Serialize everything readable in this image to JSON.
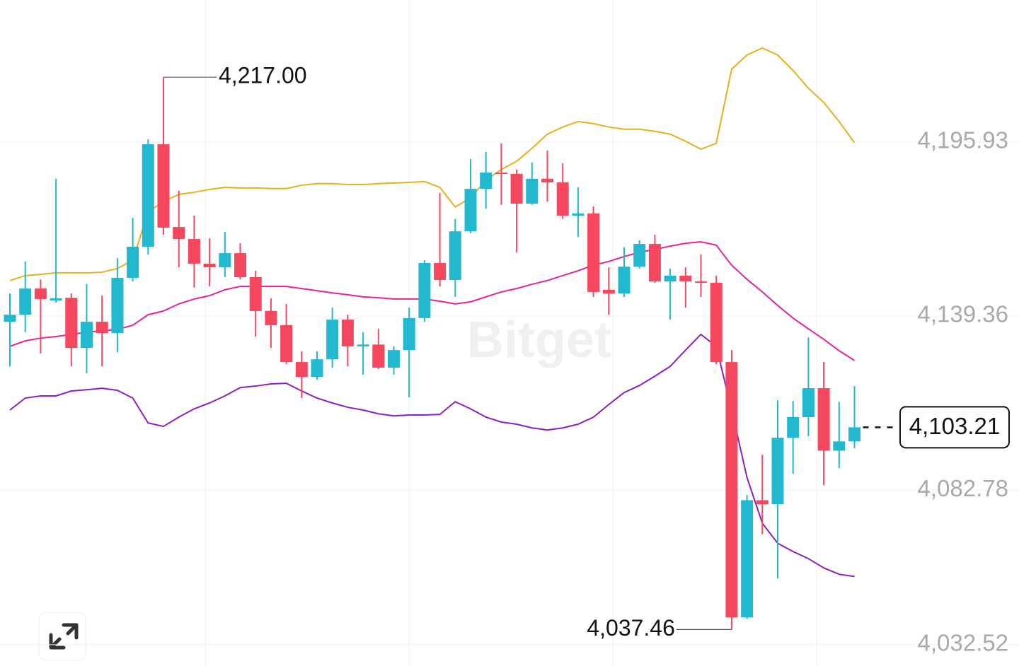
{
  "chart_data": {
    "type": "candlestick",
    "watermark": "Bitget",
    "up_color": "#22b9d0",
    "down_color": "#f5485f",
    "open": [
      4137.5,
      4139.8,
      4148.3,
      4144.4,
      4145.3,
      4129.0,
      4137.5,
      4133.8,
      4151.8,
      4161.9,
      4195.2,
      4168.3,
      4164.4,
      4156.4,
      4155.2,
      4159.8,
      4152.0,
      4141.0,
      4136.4,
      4124.4,
      4119.6,
      4125.3,
      4138.2,
      4129.5,
      4130.1,
      4122.6,
      4128.3,
      4138.7,
      4156.6,
      4151.1,
      4166.9,
      4180.7,
      4186.0,
      4185.6,
      4175.9,
      4184.0,
      4182.8,
      4172.0,
      4172.7,
      4147.9,
      4146.7,
      4155.4,
      4162.8,
      4150.6,
      4152.5,
      4150.6,
      4150.2,
      4124.4,
      4041.4,
      4079.5,
      4078.2,
      4099.8,
      4106.5,
      4115.9,
      4095.6,
      4098.6
    ],
    "high": [
      4146.7,
      4157.1,
      4151.3,
      4184.0,
      4146.7,
      4149.7,
      4146.0,
      4158.2,
      4171.3,
      4196.8,
      4217.0,
      4180.1,
      4172.0,
      4164.6,
      4166.7,
      4163.0,
      4154.1,
      4145.1,
      4143.3,
      4127.9,
      4127.9,
      4142.1,
      4139.8,
      4134.1,
      4135.2,
      4129.5,
      4142.1,
      4157.5,
      4179.4,
      4170.9,
      4190.4,
      4192.7,
      4195.5,
      4187.0,
      4189.3,
      4193.2,
      4189.0,
      4181.2,
      4175.0,
      4155.2,
      4161.7,
      4164.0,
      4165.8,
      4154.8,
      4155.2,
      4159.4,
      4152.5,
      4128.3,
      4081.2,
      4094.3,
      4112.0,
      4111.8,
      4132.4,
      4124.4,
      4111.5,
      4116.6
    ],
    "low": [
      4123.0,
      4134.1,
      4127.2,
      4143.7,
      4123.0,
      4120.7,
      4123.0,
      4127.6,
      4150.6,
      4159.4,
      4165.8,
      4155.2,
      4148.6,
      4149.0,
      4152.0,
      4151.3,
      4132.7,
      4129.0,
      4123.7,
      4112.7,
      4118.7,
      4122.6,
      4123.0,
      4120.3,
      4122.1,
      4120.3,
      4112.9,
      4137.5,
      4149.0,
      4145.6,
      4166.3,
      4174.3,
      4175.5,
      4160.0,
      4175.5,
      4176.6,
      4170.9,
      4165.1,
      4145.6,
      4139.8,
      4145.6,
      4154.8,
      4150.2,
      4138.2,
      4142.1,
      4145.6,
      4123.7,
      4037.46,
      4040.9,
      4068.5,
      4054.0,
      4088.1,
      4100.3,
      4084.4,
      4089.9,
      4096.4
    ],
    "close": [
      4139.8,
      4148.3,
      4144.9,
      4145.1,
      4129.0,
      4137.5,
      4133.8,
      4151.8,
      4161.9,
      4195.2,
      4168.1,
      4164.4,
      4156.4,
      4155.2,
      4159.8,
      4152.0,
      4141.0,
      4136.4,
      4124.4,
      4119.6,
      4125.3,
      4138.2,
      4129.5,
      4130.1,
      4122.6,
      4128.3,
      4138.7,
      4156.6,
      4151.1,
      4166.9,
      4180.7,
      4186.0,
      4185.6,
      4175.9,
      4184.0,
      4182.8,
      4172.0,
      4172.7,
      4147.2,
      4146.7,
      4155.4,
      4162.8,
      4150.6,
      4152.5,
      4150.6,
      4150.2,
      4124.4,
      4041.4,
      4079.5,
      4078.2,
      4099.8,
      4106.5,
      4115.9,
      4095.6,
      4098.6,
      4103.21
    ],
    "bands": [
      {
        "color": "#e8b020",
        "values": [
          4150.9,
          4152.5,
          4152.9,
          4153.4,
          4153.4,
          4153.4,
          4153.6,
          4154.8,
          4157.5,
          4173.2,
          4176.6,
          4178.9,
          4179.6,
          4180.5,
          4181.2,
          4181.0,
          4181.0,
          4180.8,
          4180.8,
          4181.9,
          4182.4,
          4182.4,
          4182.1,
          4182.1,
          4182.4,
          4182.6,
          4182.8,
          4183.1,
          4181.2,
          4174.8,
          4177.8,
          4183.5,
          4187.0,
          4189.7,
          4193.9,
          4198.5,
          4200.8,
          4202.6,
          4201.9,
          4200.8,
          4200.1,
          4200.1,
          4199.4,
          4198.5,
          4196.2,
          4193.6,
          4195.5,
          4219.6,
          4224.2,
          4226.5,
          4224.2,
          4219.2,
          4213.4,
          4208.8,
          4202.6,
          4195.7
        ]
      },
      {
        "color": "#e0269a",
        "values": [
          4129.5,
          4131.3,
          4132.2,
          4132.7,
          4133.4,
          4134.1,
          4134.5,
          4135.0,
          4136.4,
          4139.8,
          4141.0,
          4143.3,
          4144.9,
          4146.0,
          4147.9,
          4149.0,
          4149.0,
          4149.0,
          4149.0,
          4148.3,
          4147.6,
          4146.9,
          4146.3,
          4145.6,
          4145.3,
          4144.9,
          4144.9,
          4144.9,
          4144.2,
          4143.3,
          4144.0,
          4145.6,
          4147.2,
          4148.3,
          4149.7,
          4150.9,
          4152.5,
          4154.1,
          4155.9,
          4157.1,
          4158.7,
          4160.1,
          4161.0,
          4162.1,
          4163.0,
          4163.5,
          4162.4,
          4155.9,
          4151.3,
          4147.2,
          4142.8,
          4138.7,
          4135.2,
          4131.8,
          4128.1,
          4124.9
        ]
      },
      {
        "color": "#8a1fc4",
        "values": [
          4108.8,
          4112.7,
          4113.4,
          4113.4,
          4115.0,
          4115.4,
          4115.9,
          4115.2,
          4112.7,
          4104.6,
          4103.5,
          4106.5,
          4109.2,
          4111.1,
          4113.4,
          4116.1,
          4116.6,
          4117.3,
          4117.5,
          4115.0,
          4112.7,
          4111.1,
          4109.7,
          4108.8,
          4107.6,
          4106.9,
          4107.2,
          4107.2,
          4107.4,
          4111.5,
          4109.2,
          4106.5,
          4104.9,
          4104.2,
          4103.0,
          4102.3,
          4103.0,
          4104.2,
          4106.5,
          4110.6,
          4114.5,
          4116.8,
          4119.8,
          4123.0,
          4128.3,
          4133.4,
          4129.5,
          4108.8,
          4086.9,
          4072.0,
          4065.5,
          4062.8,
          4060.5,
          4057.5,
          4055.4,
          4054.7
        ]
      }
    ],
    "ylim": [
      4025.6,
      4242.1
    ],
    "yticks": [
      {
        "value": 4195.93,
        "label": "4,195.93"
      },
      {
        "value": 4139.36,
        "label": "4,139.36"
      },
      {
        "value": 4082.78,
        "label": "4,082.78"
      },
      {
        "value": 4032.52,
        "label": "4,032.52"
      }
    ],
    "annotations": [
      {
        "value": 4217.0,
        "label": "4,217.00"
      },
      {
        "value": 4037.46,
        "label": "4,037.46"
      }
    ],
    "last_price": {
      "value": 4103.21,
      "label": "4,103.21"
    }
  }
}
